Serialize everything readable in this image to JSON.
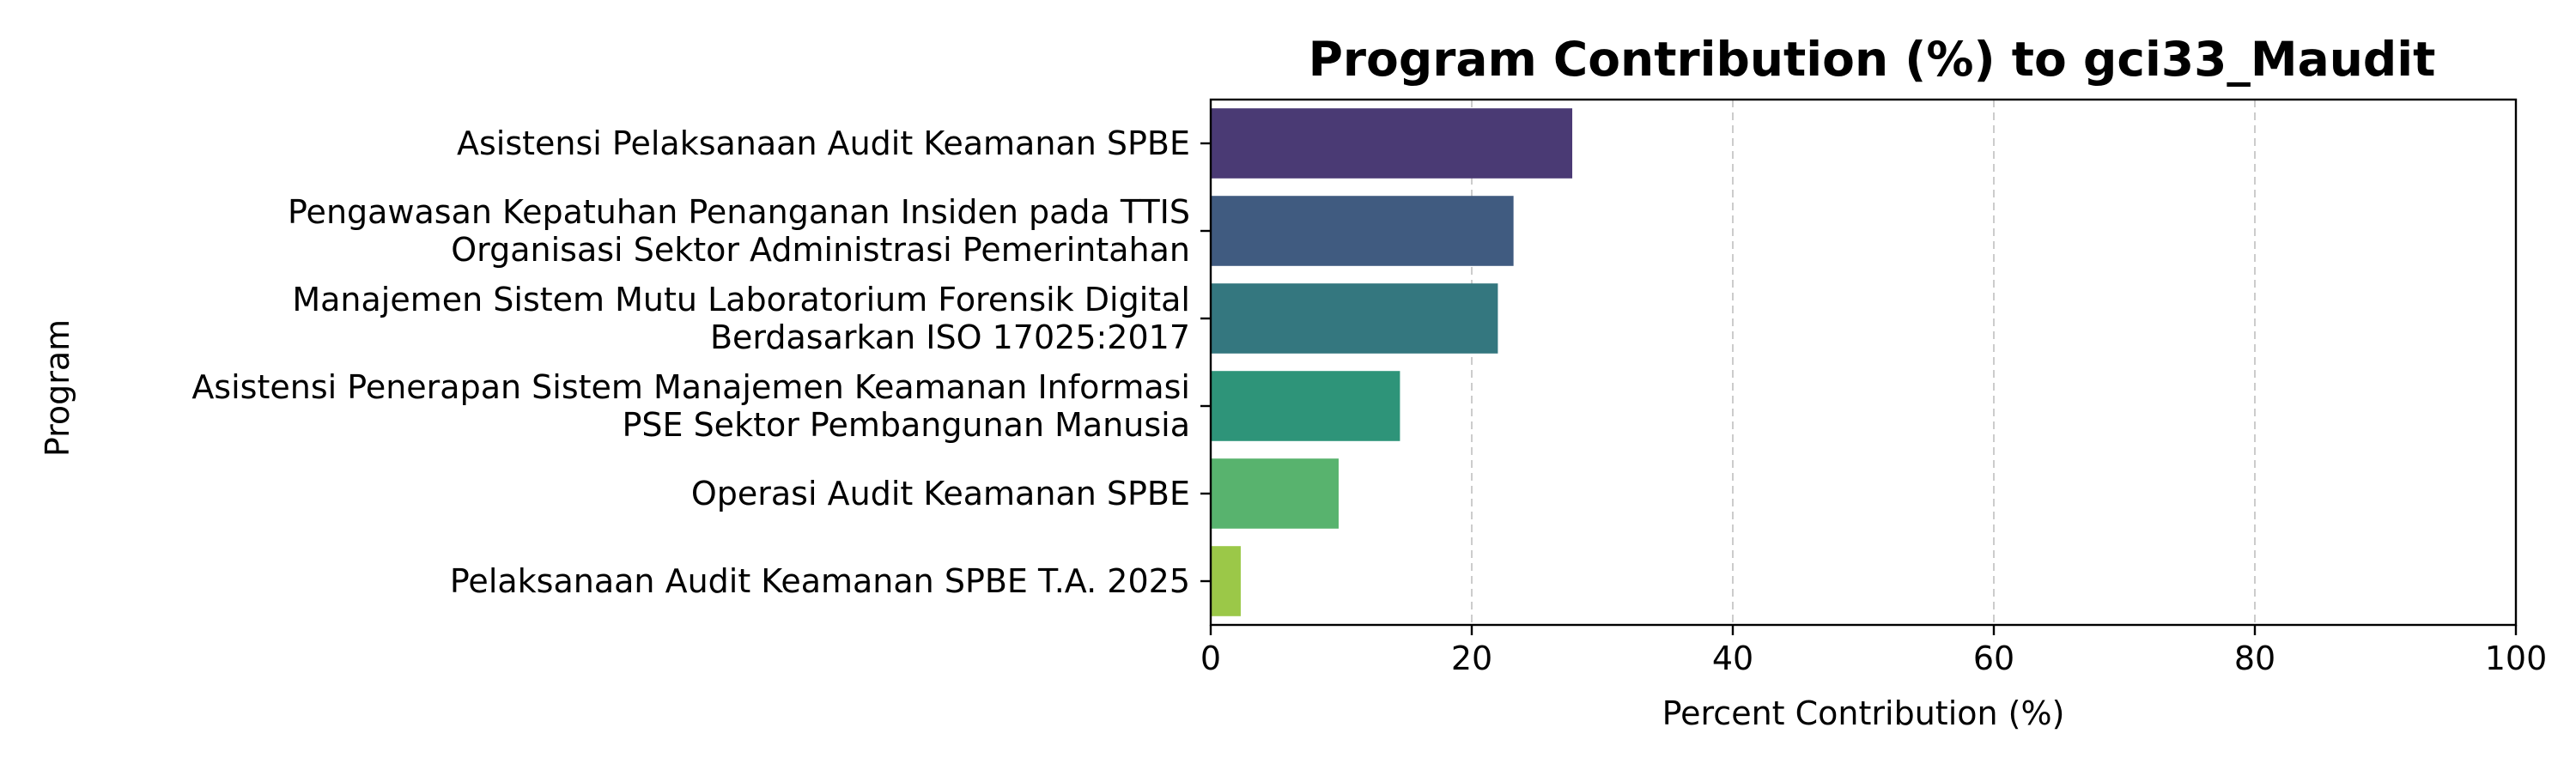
{
  "chart_data": {
    "type": "bar",
    "orientation": "horizontal",
    "title": "Program Contribution (%) to gci33_Maudit",
    "xlabel": "Percent Contribution (%)",
    "ylabel": "Program",
    "xlim": [
      0,
      100
    ],
    "xticks": [
      0,
      20,
      40,
      60,
      80,
      100
    ],
    "grid": "x-axis dashed",
    "categories": [
      [
        "Asistensi Pelaksanaan Audit Keamanan SPBE"
      ],
      [
        "Pengawasan Kepatuhan Penanganan Insiden pada TTIS",
        "Organisasi Sektor Administrasi Pemerintahan"
      ],
      [
        "Manajemen Sistem Mutu Laboratorium Forensik Digital",
        "Berdasarkan ISO 17025:2017"
      ],
      [
        "Asistensi Penerapan Sistem Manajemen Keamanan Informasi",
        "PSE Sektor Pembangunan Manusia"
      ],
      [
        "Operasi Audit Keamanan SPBE"
      ],
      [
        "Pelaksanaan Audit Keamanan SPBE T.A. 2025"
      ]
    ],
    "values": [
      27.7,
      23.2,
      22.0,
      14.5,
      9.8,
      2.3
    ],
    "colors": [
      "#4a3a74",
      "#405b80",
      "#34777f",
      "#2e9479",
      "#58b36e",
      "#9bc848"
    ]
  }
}
